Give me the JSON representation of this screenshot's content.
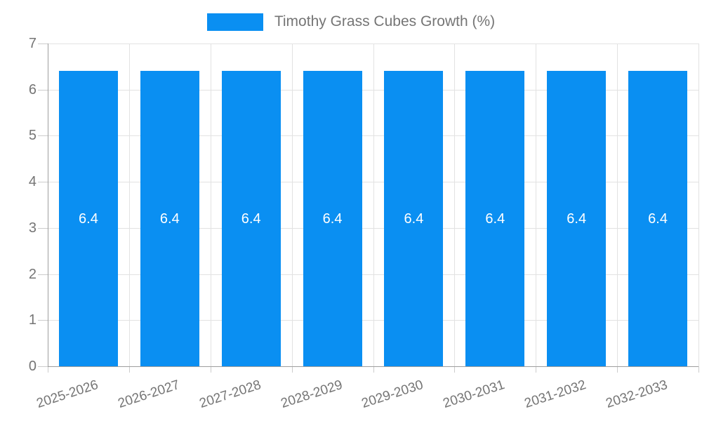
{
  "legend": {
    "label": "Timothy Grass Cubes Growth (%)",
    "swatch_color": "#0a8ff2"
  },
  "chart_data": {
    "type": "bar",
    "title": "Timothy Grass Cubes Growth (%)",
    "categories": [
      "2025-2026",
      "2026-2027",
      "2027-2028",
      "2028-2029",
      "2029-2030",
      "2030-2031",
      "2031-2032",
      "2032-2033"
    ],
    "values": [
      6.4,
      6.4,
      6.4,
      6.4,
      6.4,
      6.4,
      6.4,
      6.4
    ],
    "value_labels": [
      "6.4",
      "6.4",
      "6.4",
      "6.4",
      "6.4",
      "6.4",
      "6.4",
      "6.4"
    ],
    "xlabel": "",
    "ylabel": "",
    "ylim": [
      0,
      7
    ],
    "yticks": [
      0,
      1,
      2,
      3,
      4,
      5,
      6,
      7
    ],
    "grid": true,
    "legend_position": "top",
    "bar_color": "#0a8ff2",
    "value_label_color": "#ffffff",
    "axis_text_color": "#757575",
    "gridline_color": "#e2e2e2",
    "axis_line_color": "#9e9e9e"
  }
}
